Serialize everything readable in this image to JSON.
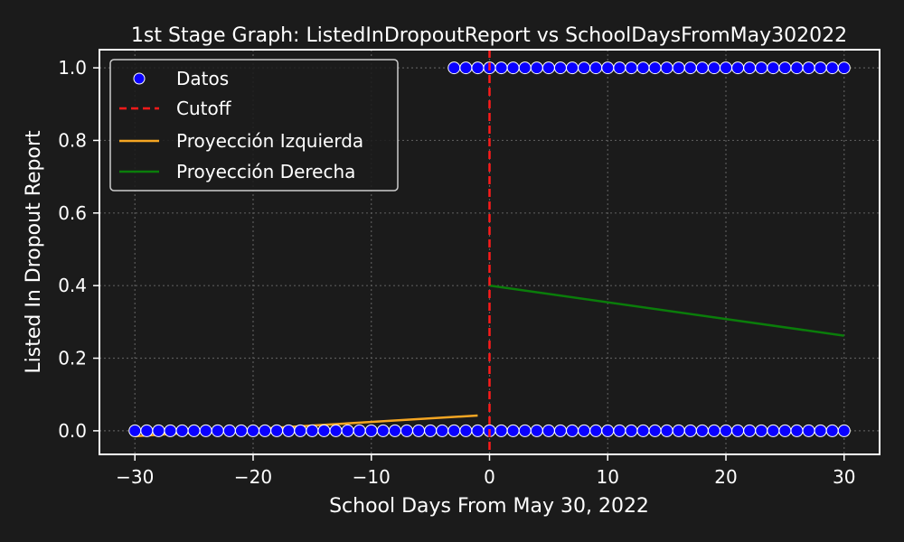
{
  "chart_data": {
    "type": "scatter",
    "title": "1st Stage Graph: ListedInDropoutReport vs SchoolDaysFromMay302022",
    "xlabel": "School Days From May 30, 2022",
    "ylabel": "Listed In Dropout Report",
    "xlim": [
      -33,
      33
    ],
    "ylim": [
      -0.065,
      1.05
    ],
    "xticks": [
      -30,
      -20,
      -10,
      0,
      10,
      20,
      30
    ],
    "xtick_labels": [
      "−30",
      "−20",
      "−10",
      "0",
      "10",
      "20",
      "30"
    ],
    "yticks": [
      0.0,
      0.2,
      0.4,
      0.6,
      0.8,
      1.0
    ],
    "ytick_labels": [
      "0.0",
      "0.2",
      "0.4",
      "0.6",
      "0.8",
      "1.0"
    ],
    "grid": true,
    "legend_position": "top-left",
    "colors": {
      "background": "#1b1b1b",
      "axes": "#ffffff",
      "points": "#0a00ff",
      "point_edge": "#ffffff",
      "cutoff": "#ff1a1a",
      "left_fit": "#f5a623",
      "right_fit": "#0a7d0a"
    },
    "scatter": {
      "name": "Datos",
      "y0_x_range": [
        -30,
        30
      ],
      "y1_x_range": [
        -3,
        30
      ],
      "points_y0": [
        -30,
        -29,
        -28,
        -27,
        -26,
        -25,
        -24,
        -23,
        -22,
        -21,
        -20,
        -19,
        -18,
        -17,
        -16,
        -15,
        -14,
        -13,
        -12,
        -11,
        -10,
        -9,
        -8,
        -7,
        -6,
        -5,
        -4,
        -3,
        -2,
        -1,
        0,
        1,
        2,
        3,
        4,
        5,
        6,
        7,
        8,
        9,
        10,
        11,
        12,
        13,
        14,
        15,
        16,
        17,
        18,
        19,
        20,
        21,
        22,
        23,
        24,
        25,
        26,
        27,
        28,
        29,
        30
      ],
      "points_y1": [
        -3,
        -2,
        -1,
        0,
        1,
        2,
        3,
        4,
        5,
        6,
        7,
        8,
        9,
        10,
        11,
        12,
        13,
        14,
        15,
        16,
        17,
        18,
        19,
        20,
        21,
        22,
        23,
        24,
        25,
        26,
        27,
        28,
        29,
        30
      ]
    },
    "cutoff": {
      "name": "Cutoff",
      "x": 0
    },
    "left_fit": {
      "name": "Proyección Izquierda",
      "x": [
        -30,
        -1
      ],
      "y": [
        -0.015,
        0.042
      ]
    },
    "right_fit": {
      "name": "Proyección Derecha",
      "x": [
        0,
        30
      ],
      "y": [
        0.4,
        0.262
      ]
    }
  }
}
